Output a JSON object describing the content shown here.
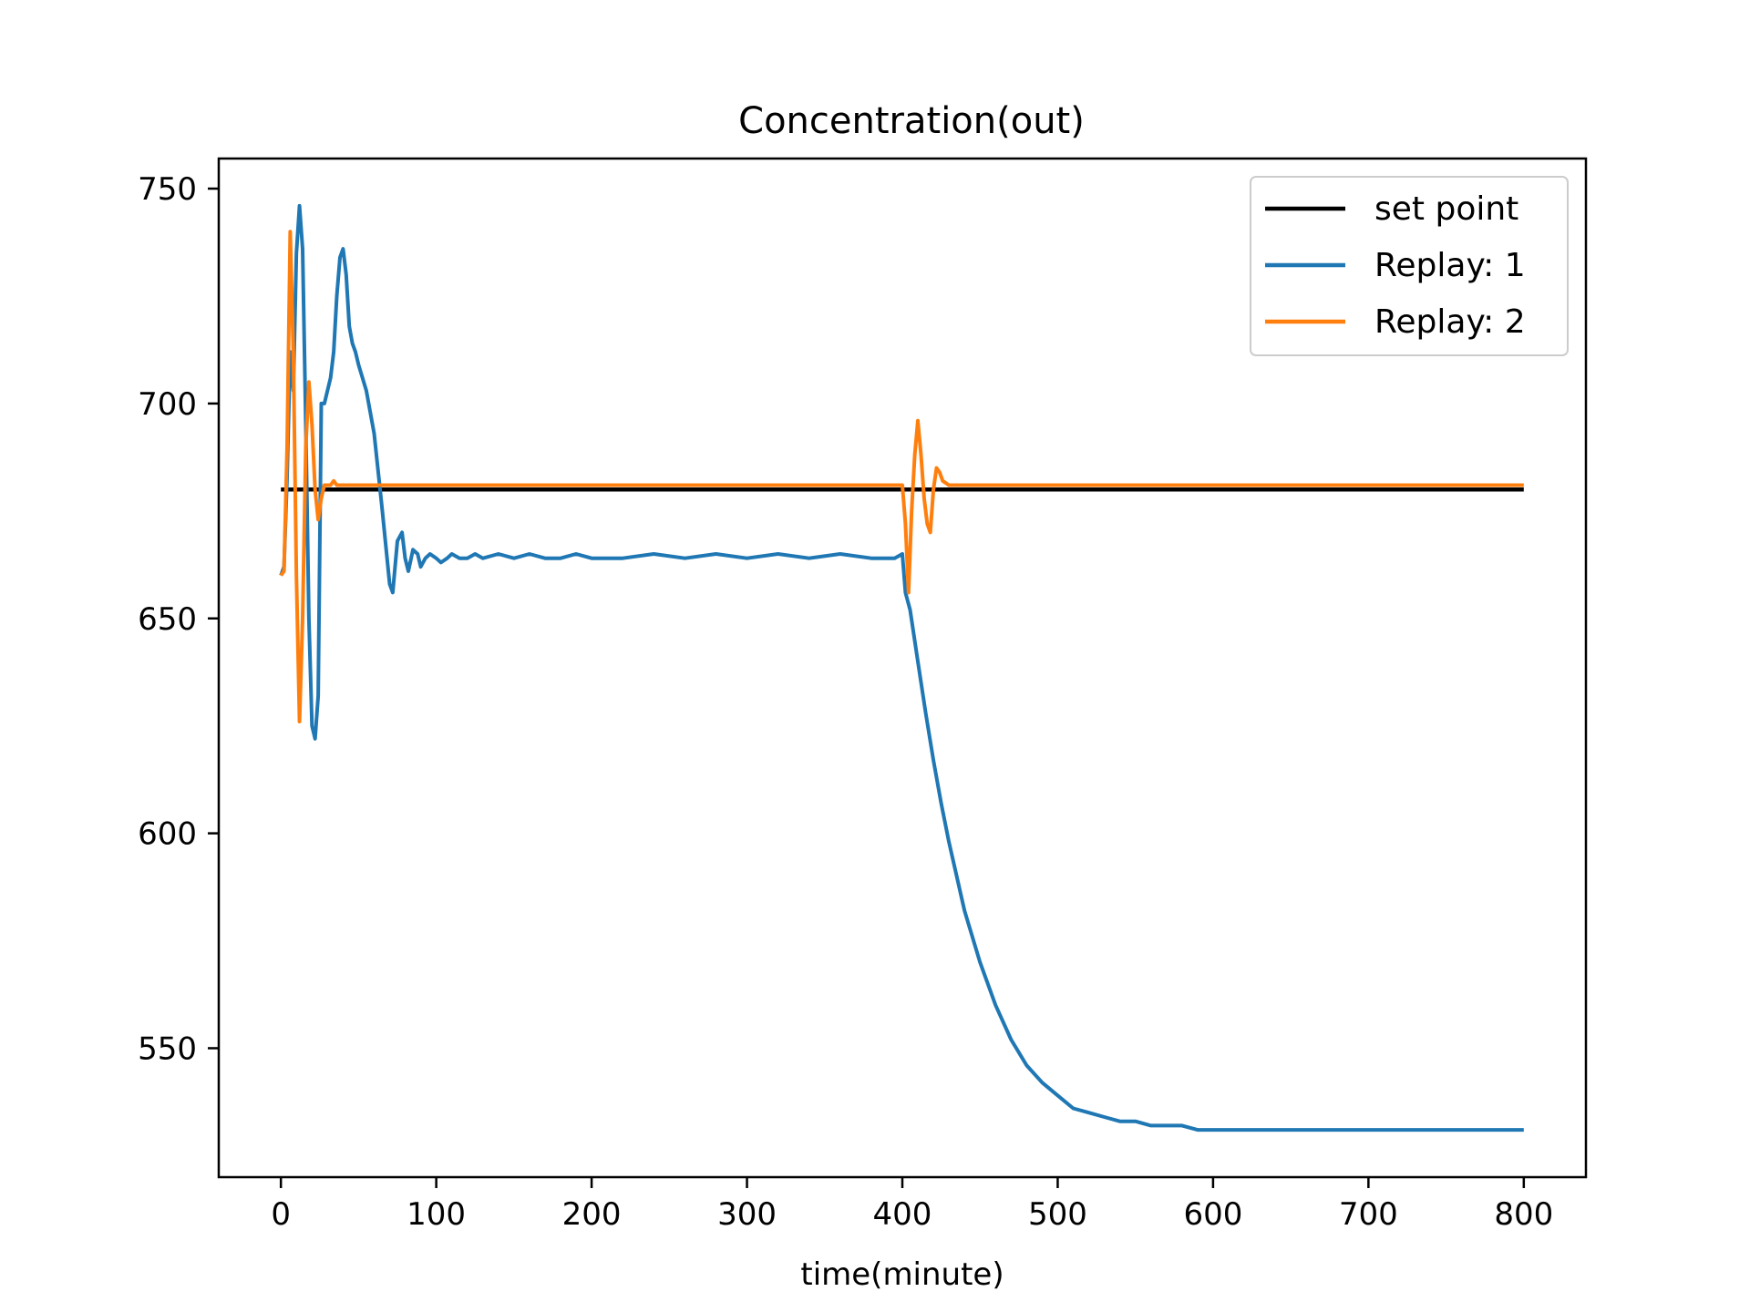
{
  "chart_data": {
    "type": "line",
    "title": "Concentration(out)",
    "xlabel": "time(minute)",
    "ylabel": "",
    "xlim": [
      -40,
      840
    ],
    "ylim": [
      520,
      757
    ],
    "xticks": [
      0,
      100,
      200,
      300,
      400,
      500,
      600,
      700,
      800
    ],
    "xtick_labels": [
      "0",
      "100",
      "200",
      "300",
      "400",
      "500",
      "600",
      "700",
      "800"
    ],
    "yticks": [
      550,
      600,
      650,
      700,
      750
    ],
    "ytick_labels": [
      "550",
      "600",
      "650",
      "700",
      "750"
    ],
    "grid": false,
    "legend_position": "top-right",
    "series": [
      {
        "name": "set point",
        "color": "#000000",
        "x": [
          0,
          800
        ],
        "y": [
          680,
          680
        ]
      },
      {
        "name": "Replay: 1",
        "color": "#1f77b4",
        "x": [
          0,
          2,
          4,
          6,
          8,
          10,
          12,
          14,
          16,
          18,
          20,
          22,
          24,
          26,
          28,
          30,
          32,
          34,
          36,
          38,
          40,
          42,
          44,
          46,
          48,
          50,
          55,
          60,
          65,
          70,
          72,
          75,
          78,
          80,
          82,
          85,
          88,
          90,
          93,
          96,
          100,
          103,
          107,
          110,
          115,
          120,
          125,
          130,
          140,
          150,
          160,
          170,
          180,
          190,
          200,
          220,
          240,
          260,
          280,
          300,
          320,
          340,
          360,
          380,
          395,
          400,
          402,
          405,
          410,
          415,
          420,
          425,
          430,
          440,
          450,
          460,
          470,
          480,
          490,
          500,
          510,
          520,
          530,
          540,
          550,
          560,
          570,
          580,
          590,
          600,
          620,
          640,
          660,
          680,
          700,
          720,
          740,
          760,
          780,
          800
        ],
        "y": [
          660,
          662,
          683,
          712,
          703,
          735,
          746,
          736,
          695,
          650,
          625,
          622,
          632,
          700,
          700,
          703,
          706,
          712,
          725,
          734,
          736,
          730,
          718,
          714,
          712,
          709,
          703,
          693,
          676,
          658,
          656,
          668,
          670,
          664,
          661,
          666,
          665,
          662,
          664,
          665,
          664,
          663,
          664,
          665,
          664,
          664,
          665,
          664,
          665,
          664,
          665,
          664,
          664,
          665,
          664,
          664,
          665,
          664,
          665,
          664,
          665,
          664,
          665,
          664,
          664,
          665,
          656,
          652,
          640,
          628,
          617,
          607,
          598,
          582,
          570,
          560,
          552,
          546,
          542,
          539,
          536,
          535,
          534,
          533,
          533,
          532,
          532,
          532,
          531,
          531,
          531,
          531,
          531,
          531,
          531,
          531,
          531,
          531,
          531,
          531
        ]
      },
      {
        "name": "Replay: 2",
        "color": "#ff7f0e",
        "x": [
          0,
          2,
          4,
          6,
          8,
          10,
          12,
          14,
          16,
          18,
          20,
          22,
          24,
          26,
          28,
          30,
          32,
          34,
          36,
          40,
          50,
          100,
          150,
          200,
          250,
          300,
          350,
          398,
          400,
          402,
          404,
          406,
          408,
          410,
          412,
          414,
          416,
          418,
          420,
          422,
          424,
          426,
          430,
          440,
          460,
          500,
          600,
          700,
          800
        ],
        "y": [
          660,
          661,
          690,
          740,
          712,
          660,
          626,
          650,
          690,
          705,
          695,
          680,
          673,
          678,
          681,
          681,
          681,
          682,
          681,
          681,
          681,
          681,
          681,
          681,
          681,
          681,
          681,
          681,
          681,
          672,
          656,
          675,
          688,
          696,
          688,
          678,
          672,
          670,
          680,
          685,
          684,
          682,
          681,
          681,
          681,
          681,
          681,
          681,
          681
        ]
      }
    ]
  }
}
